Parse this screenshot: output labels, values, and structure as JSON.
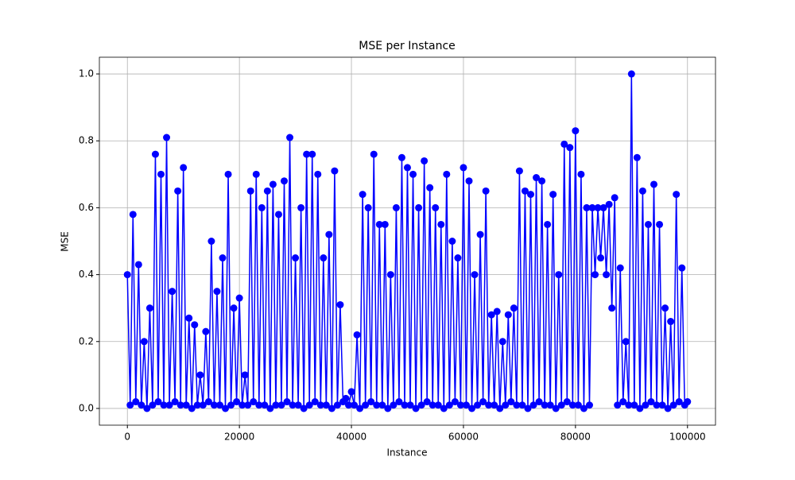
{
  "chart_data": {
    "type": "line",
    "title": "MSE per Instance",
    "xlabel": "Instance",
    "ylabel": "MSE",
    "x": [
      0,
      500,
      1000,
      1500,
      2000,
      2500,
      3000,
      3500,
      4000,
      4500,
      5000,
      5500,
      6000,
      6500,
      7000,
      7500,
      8000,
      8500,
      9000,
      9500,
      10000,
      10500,
      11000,
      11500,
      12000,
      12500,
      13000,
      13500,
      14000,
      14500,
      15000,
      15500,
      16000,
      16500,
      17000,
      17500,
      18000,
      18500,
      19000,
      19500,
      20000,
      20500,
      21000,
      21500,
      22000,
      22500,
      23000,
      23500,
      24000,
      24500,
      25000,
      25500,
      26000,
      26500,
      27000,
      27500,
      28000,
      28500,
      29000,
      29500,
      30000,
      30500,
      31000,
      31500,
      32000,
      32500,
      33000,
      33500,
      34000,
      34500,
      35000,
      35500,
      36000,
      36500,
      37000,
      37500,
      38000,
      38500,
      39000,
      39500,
      40000,
      40500,
      41000,
      41500,
      42000,
      42500,
      43000,
      43500,
      44000,
      44500,
      45000,
      45500,
      46000,
      46500,
      47000,
      47500,
      48000,
      48500,
      49000,
      49500,
      50000,
      50500,
      51000,
      51500,
      52000,
      52500,
      53000,
      53500,
      54000,
      54500,
      55000,
      55500,
      56000,
      56500,
      57000,
      57500,
      58000,
      58500,
      59000,
      59500,
      60000,
      60500,
      61000,
      61500,
      62000,
      62500,
      63000,
      63500,
      64000,
      64500,
      65000,
      65500,
      66000,
      66500,
      67000,
      67500,
      68000,
      68500,
      69000,
      69500,
      70000,
      70500,
      71000,
      71500,
      72000,
      72500,
      73000,
      73500,
      74000,
      74500,
      75000,
      75500,
      76000,
      76500,
      77000,
      77500,
      78000,
      78500,
      79000,
      79500,
      80000,
      80500,
      81000,
      81500,
      82000,
      82500,
      83000,
      83500,
      84000,
      84500,
      85000,
      85500,
      86000,
      86500,
      87000,
      87500,
      88000,
      88500,
      89000,
      89500,
      90000,
      90500,
      91000,
      91500,
      92000,
      92500,
      93000,
      93500,
      94000,
      94500,
      95000,
      95500,
      96000,
      96500,
      97000,
      97500,
      98000,
      98500,
      99000,
      99500,
      100000
    ],
    "series": [
      {
        "name": "MSE",
        "color": "#0000ff",
        "values": [
          0.4,
          0.01,
          0.58,
          0.02,
          0.43,
          0.01,
          0.2,
          0.0,
          0.3,
          0.01,
          0.76,
          0.02,
          0.7,
          0.01,
          0.81,
          0.01,
          0.35,
          0.02,
          0.65,
          0.01,
          0.72,
          0.01,
          0.27,
          0.0,
          0.25,
          0.01,
          0.1,
          0.01,
          0.23,
          0.02,
          0.5,
          0.01,
          0.35,
          0.01,
          0.45,
          0.0,
          0.7,
          0.01,
          0.3,
          0.02,
          0.33,
          0.01,
          0.1,
          0.01,
          0.65,
          0.02,
          0.7,
          0.01,
          0.6,
          0.01,
          0.65,
          0.0,
          0.67,
          0.01,
          0.58,
          0.01,
          0.68,
          0.02,
          0.81,
          0.01,
          0.45,
          0.01,
          0.6,
          0.0,
          0.76,
          0.01,
          0.76,
          0.02,
          0.7,
          0.01,
          0.45,
          0.01,
          0.52,
          0.0,
          0.71,
          0.01,
          0.31,
          0.02,
          0.03,
          0.01,
          0.05,
          0.01,
          0.22,
          0.0,
          0.64,
          0.01,
          0.6,
          0.02,
          0.76,
          0.01,
          0.55,
          0.01,
          0.55,
          0.0,
          0.4,
          0.01,
          0.6,
          0.02,
          0.75,
          0.01,
          0.72,
          0.01,
          0.7,
          0.0,
          0.6,
          0.01,
          0.74,
          0.02,
          0.66,
          0.01,
          0.6,
          0.01,
          0.55,
          0.0,
          0.7,
          0.01,
          0.5,
          0.02,
          0.45,
          0.01,
          0.72,
          0.01,
          0.68,
          0.0,
          0.4,
          0.01,
          0.52,
          0.02,
          0.65,
          0.01,
          0.28,
          0.01,
          0.29,
          0.0,
          0.2,
          0.01,
          0.28,
          0.02,
          0.3,
          0.01,
          0.71,
          0.01,
          0.65,
          0.0,
          0.64,
          0.01,
          0.69,
          0.02,
          0.68,
          0.01,
          0.55,
          0.01,
          0.64,
          0.0,
          0.4,
          0.01,
          0.79,
          0.02,
          0.78,
          0.01,
          0.83,
          0.01,
          0.7,
          0.0,
          0.6,
          0.01,
          0.6,
          0.4,
          0.6,
          0.45,
          0.6,
          0.4,
          0.61,
          0.3,
          0.63,
          0.01,
          0.42,
          0.02,
          0.2,
          0.01,
          1.0,
          0.01,
          0.75,
          0.0,
          0.65,
          0.01,
          0.55,
          0.02,
          0.67,
          0.01,
          0.55,
          0.01,
          0.3,
          0.0,
          0.26,
          0.01,
          0.64,
          0.02,
          0.42,
          0.01,
          0.02
        ]
      }
    ],
    "xlim": [
      -5000,
      105000
    ],
    "xticks": [
      0,
      20000,
      40000,
      60000,
      80000,
      100000
    ],
    "ylim": [
      -0.05,
      1.05
    ],
    "yticks": [
      {
        "value": 0,
        "label": "0.0"
      },
      0.2,
      0.4,
      0.6,
      0.8,
      {
        "value": 1,
        "label": "1.0"
      }
    ],
    "grid": true,
    "marker": "circle"
  }
}
